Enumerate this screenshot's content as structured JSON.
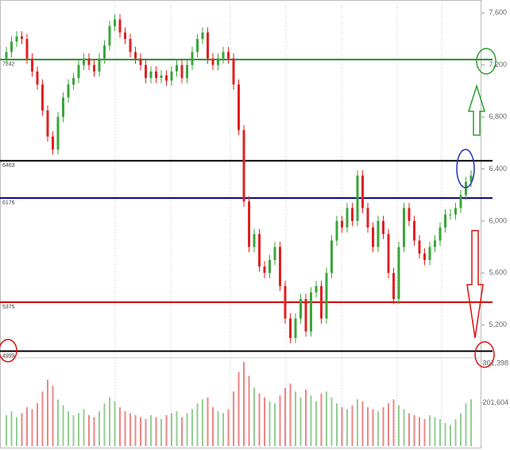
{
  "chart_data": {
    "type": "candlestick",
    "open": [
      7250,
      7300,
      7380,
      7420,
      7400,
      7250,
      7150,
      7050,
      6850,
      6650,
      6550,
      6800,
      6950,
      7050,
      7100,
      7200,
      7250,
      7200,
      7150,
      7250,
      7350,
      7500,
      7550,
      7450,
      7400,
      7300,
      7250,
      7200,
      7100,
      7150,
      7100,
      7120,
      7080,
      7150,
      7200,
      7100,
      7200,
      7300,
      7400,
      7450,
      7250,
      7200,
      7250,
      7300,
      7250,
      7050,
      6700,
      6150,
      5800,
      5900,
      5650,
      5600,
      5700,
      5800,
      5500,
      5250,
      5100,
      5250,
      5400,
      5150,
      5450,
      5500,
      5250,
      5600,
      5850,
      6000,
      5950,
      6100,
      6000,
      6350,
      6100,
      5950,
      5800,
      6000,
      5900,
      5600,
      5400,
      5800,
      6100,
      6000,
      5850,
      5750,
      5700,
      5800,
      5850,
      5950,
      6050,
      6050,
      6100,
      6200,
      6300
    ],
    "high": [
      7340,
      7420,
      7460,
      7460,
      7440,
      7290,
      7190,
      7090,
      6890,
      6690,
      6840,
      6990,
      7090,
      7140,
      7240,
      7290,
      7290,
      7240,
      7290,
      7390,
      7540,
      7590,
      7590,
      7490,
      7440,
      7340,
      7290,
      7240,
      7190,
      7190,
      7160,
      7160,
      7190,
      7240,
      7240,
      7240,
      7340,
      7440,
      7490,
      7490,
      7290,
      7290,
      7340,
      7340,
      7290,
      7090,
      6740,
      6190,
      5940,
      5940,
      5690,
      5740,
      5840,
      5840,
      5540,
      5290,
      5290,
      5440,
      5440,
      5490,
      5540,
      5540,
      5640,
      5890,
      6040,
      6040,
      6140,
      6140,
      6390,
      6390,
      6140,
      5990,
      6040,
      6040,
      5940,
      5640,
      5840,
      6140,
      6140,
      6040,
      5890,
      5790,
      5840,
      5890,
      5990,
      6090,
      6090,
      6140,
      6240,
      6340,
      6390
    ],
    "low": [
      7210,
      7260,
      7340,
      7360,
      7210,
      7110,
      7010,
      6810,
      6610,
      6510,
      6510,
      6760,
      6910,
      7010,
      7060,
      7160,
      7160,
      7110,
      7110,
      7210,
      7310,
      7460,
      7410,
      7360,
      7260,
      7210,
      7160,
      7060,
      7060,
      7060,
      7060,
      7040,
      7040,
      7110,
      7060,
      7060,
      7160,
      7260,
      7360,
      7210,
      7160,
      7160,
      7210,
      7210,
      7010,
      6660,
      6110,
      5760,
      5760,
      5610,
      5560,
      5560,
      5660,
      5460,
      5210,
      5060,
      5060,
      5210,
      5110,
      5110,
      5410,
      5210,
      5210,
      5560,
      5810,
      5910,
      5910,
      5960,
      5960,
      6060,
      5910,
      5760,
      5760,
      5860,
      5560,
      5360,
      5360,
      5760,
      5960,
      5810,
      5710,
      5660,
      5660,
      5760,
      5810,
      5910,
      6010,
      6010,
      6060,
      6160,
      6260
    ],
    "close": [
      7300,
      7380,
      7420,
      7400,
      7250,
      7150,
      7050,
      6850,
      6650,
      6550,
      6800,
      6950,
      7050,
      7100,
      7200,
      7250,
      7200,
      7150,
      7250,
      7350,
      7500,
      7550,
      7450,
      7400,
      7300,
      7250,
      7200,
      7100,
      7150,
      7100,
      7120,
      7080,
      7150,
      7200,
      7100,
      7200,
      7300,
      7400,
      7450,
      7250,
      7200,
      7250,
      7300,
      7250,
      7050,
      6700,
      6150,
      5800,
      5900,
      5650,
      5600,
      5700,
      5800,
      5500,
      5250,
      5100,
      5250,
      5400,
      5150,
      5450,
      5500,
      5250,
      5600,
      5850,
      6000,
      5950,
      6100,
      6000,
      6350,
      6100,
      5950,
      5800,
      6000,
      5900,
      5600,
      5400,
      5800,
      6100,
      6000,
      5850,
      5750,
      5700,
      5800,
      5850,
      5950,
      6050,
      6050,
      6100,
      6200,
      6300,
      6350
    ],
    "volume": [
      170000,
      180000,
      165000,
      175000,
      190000,
      185000,
      200000,
      230000,
      260000,
      245000,
      210000,
      195000,
      180000,
      170000,
      175000,
      185000,
      170000,
      165000,
      180000,
      200000,
      215000,
      205000,
      190000,
      180000,
      175000,
      170000,
      165000,
      160000,
      170000,
      165000,
      160000,
      170000,
      175000,
      180000,
      165000,
      175000,
      185000,
      200000,
      210000,
      215000,
      190000,
      180000,
      175000,
      185000,
      230000,
      280000,
      305000,
      270000,
      240000,
      225000,
      215000,
      205000,
      200000,
      220000,
      240000,
      250000,
      230000,
      215000,
      235000,
      220000,
      205000,
      225000,
      230000,
      215000,
      200000,
      190000,
      185000,
      195000,
      210000,
      205000,
      190000,
      185000,
      180000,
      190000,
      200000,
      210000,
      195000,
      185000,
      175000,
      170000,
      165000,
      160000,
      170000,
      165000,
      160000,
      150000,
      145000,
      160000,
      175000,
      200000,
      210000
    ],
    "up_color": "#3aa63a",
    "down_color": "#e02020",
    "ylim": [
      4960,
      7700
    ],
    "yticks": [
      {
        "value": 7600,
        "label": "7,600"
      },
      {
        "value": 7200,
        "label": "7,200"
      },
      {
        "value": 6800,
        "label": "6,800"
      },
      {
        "value": 6400,
        "label": "6,400"
      },
      {
        "value": 6000,
        "label": "6,000"
      },
      {
        "value": 5600,
        "label": "5,600"
      },
      {
        "value": 5200,
        "label": "5,200"
      }
    ],
    "volume_lim": [
      91600,
      315600
    ],
    "volume_ticks": [
      {
        "value": 301398,
        "label": "301,398"
      },
      {
        "value": 201604,
        "label": "201,604"
      }
    ],
    "levels": [
      {
        "value": 7242,
        "color": "#2e8b2e"
      },
      {
        "value": 6463,
        "color": "#000000"
      },
      {
        "value": 6176,
        "color": "#000080"
      },
      {
        "value": 5375,
        "color": "#cc0000"
      },
      {
        "value": 4999,
        "color": "#000000"
      }
    ]
  }
}
